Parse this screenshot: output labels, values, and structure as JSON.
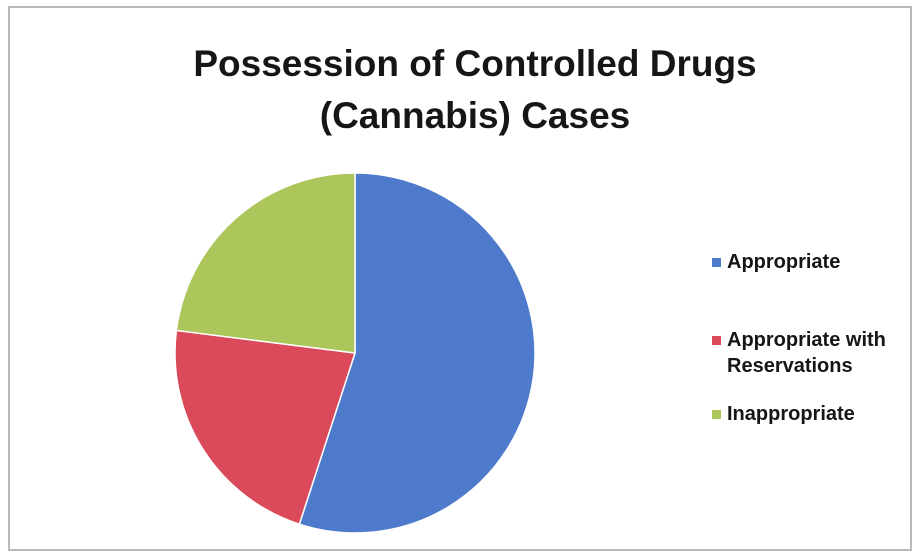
{
  "chart_data": {
    "type": "pie",
    "title_lines": [
      "Possession of Controlled Drugs",
      "(Cannabis) Cases"
    ],
    "labels": [
      "Appropriate",
      "Appropriate with Reservations",
      "Inappropriate"
    ],
    "values": [
      55,
      22,
      23
    ],
    "colors": [
      "#4E7ACB",
      "#DA4A5A",
      "#ADC65B"
    ],
    "legend_position": "right"
  }
}
